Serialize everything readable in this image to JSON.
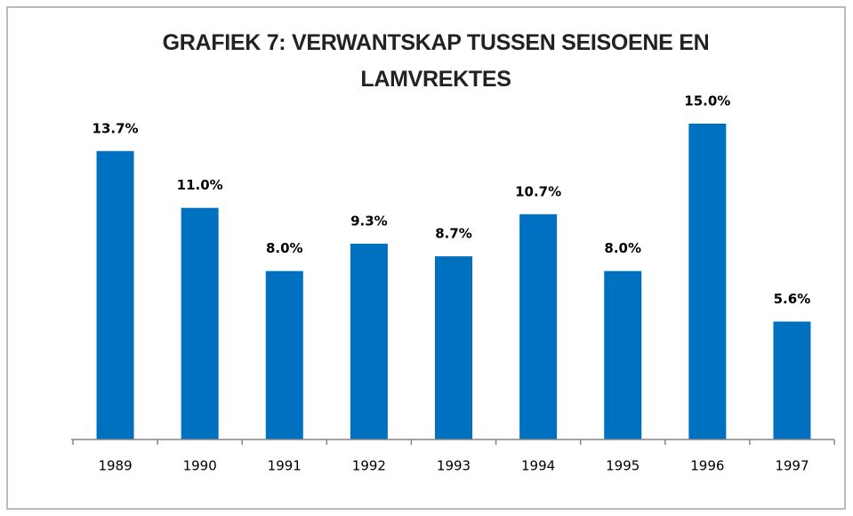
{
  "chart_data": {
    "type": "bar",
    "title": "GRAFIEK 7: VERWANTSKAP TUSSEN SEISOENE EN LAMVREKTES",
    "categories": [
      "1989",
      "1990",
      "1991",
      "1992",
      "1993",
      "1994",
      "1995",
      "1996",
      "1997"
    ],
    "values": [
      13.7,
      11.0,
      8.0,
      9.3,
      8.7,
      10.7,
      8.0,
      15.0,
      5.6
    ],
    "value_labels": [
      "13.7%",
      "11.0%",
      "8.0%",
      "9.3%",
      "8.7%",
      "10.7%",
      "8.0%",
      "15.0%",
      "5.6%"
    ],
    "color": "#0070c0"
  }
}
